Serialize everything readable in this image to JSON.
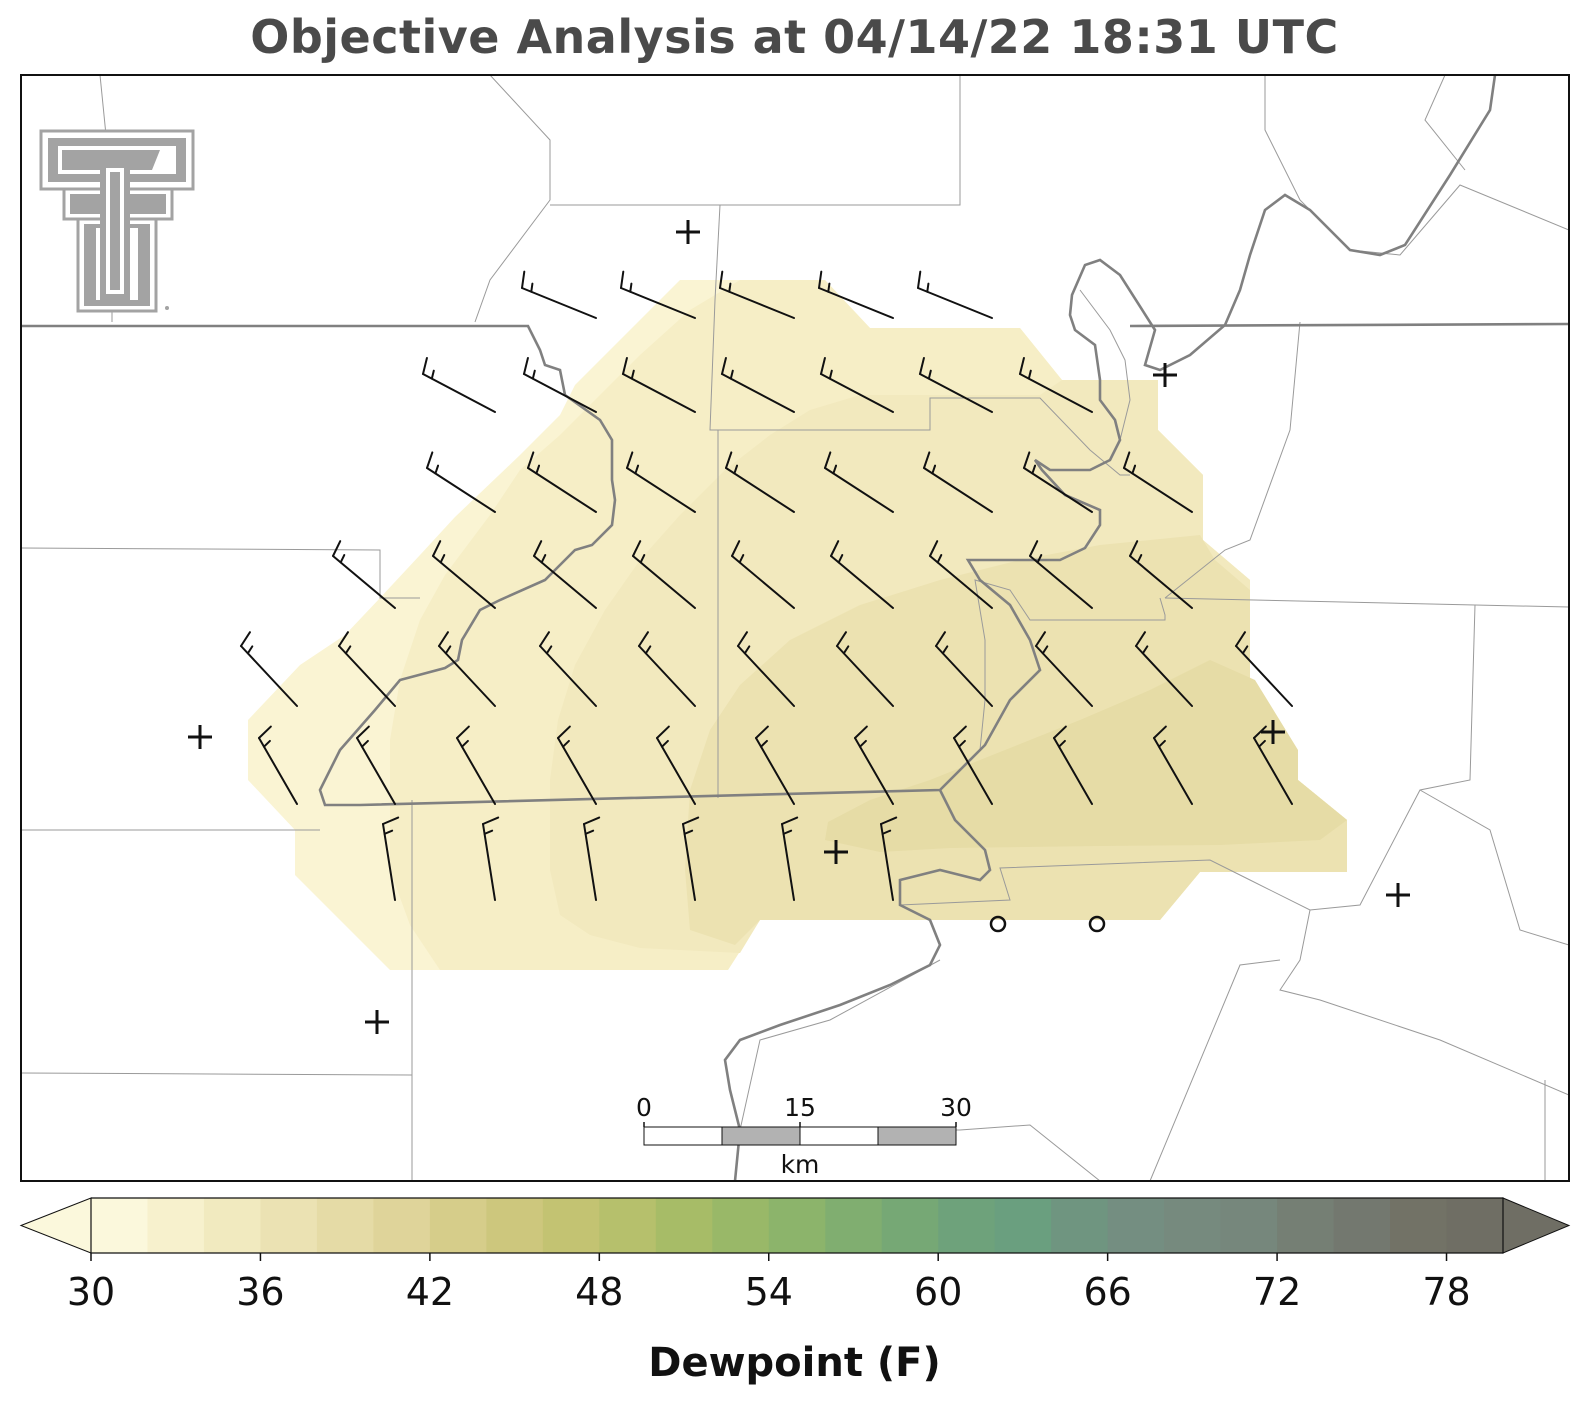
{
  "title": "Objective Analysis at 04/14/22 18:31 UTC",
  "colorbar": {
    "label": "Dewpoint (F)",
    "ticks": [
      30,
      36,
      42,
      48,
      54,
      60,
      66,
      72,
      78
    ],
    "min": 30,
    "max": 80,
    "step": 2,
    "colors": [
      "#fbf8dc",
      "#f7f1cd",
      "#f1eabf",
      "#ebe2b3",
      "#e5dba6",
      "#dfd49a",
      "#d6cd8a",
      "#cdc77d",
      "#c3c372",
      "#b6c06c",
      "#a7bc67",
      "#99b868",
      "#8cb46b",
      "#80ae70",
      "#76a875",
      "#6ea27b",
      "#6a9f7f",
      "#6f9580",
      "#748e81",
      "#768a7e",
      "#76877c",
      "#757f74",
      "#73786f",
      "#727266",
      "#6f6e64"
    ]
  },
  "scale_bar": {
    "labels": [
      "0",
      "15",
      "30"
    ],
    "unit": "km"
  },
  "logo": {
    "name": "texas-tech-double-t"
  },
  "station_markers": {
    "plus_count": 8,
    "circle_count": 2
  },
  "wind_barb_color": "#111111",
  "boundary_colors": {
    "state": "#7a7a7a",
    "county": "#9a9a9a",
    "river": "#888888"
  }
}
